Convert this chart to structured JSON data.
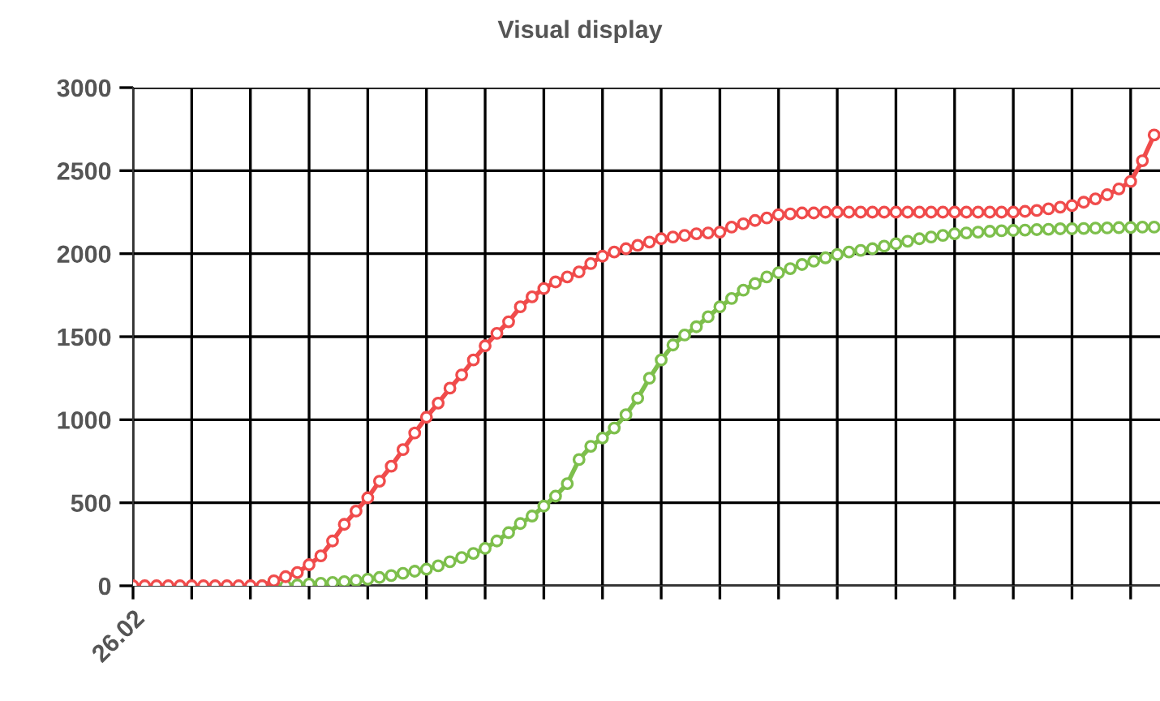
{
  "chart_data": {
    "type": "line",
    "title": "Visual display",
    "categories": [
      "26.02",
      null,
      null,
      null,
      null,
      null,
      null,
      null,
      null,
      null,
      null,
      null,
      null,
      null,
      null,
      null,
      null,
      null,
      null,
      null,
      null,
      null,
      null,
      null,
      null,
      null,
      null,
      null,
      null,
      null,
      null,
      null,
      null,
      null,
      null,
      null,
      null,
      null,
      null,
      null,
      null,
      null,
      null,
      null,
      null,
      null,
      null,
      null,
      null,
      null,
      null,
      null,
      null,
      null,
      null,
      null,
      null,
      null,
      null,
      null,
      null,
      null,
      null,
      null,
      null,
      null,
      null,
      null,
      null,
      null,
      null,
      null,
      null,
      null,
      null,
      null,
      null,
      null,
      null,
      null,
      null,
      null,
      null,
      null,
      null,
      null,
      null,
      null
    ],
    "ylim": [
      0,
      3000
    ],
    "yticks": [
      0,
      500,
      1000,
      1500,
      2000,
      2500,
      3000
    ],
    "grid": true,
    "marker": "circle",
    "line_style": "solid",
    "series": [
      {
        "color": "#f04b4b",
        "values": [
          0,
          0,
          0,
          0,
          0,
          0,
          0,
          0,
          0,
          0,
          0,
          0,
          30,
          55,
          80,
          127,
          180,
          270,
          370,
          450,
          530,
          630,
          720,
          820,
          920,
          1015,
          1100,
          1190,
          1270,
          1360,
          1445,
          1520,
          1590,
          1680,
          1740,
          1790,
          1830,
          1860,
          1890,
          1940,
          1985,
          2010,
          2030,
          2050,
          2070,
          2090,
          2100,
          2110,
          2120,
          2125,
          2130,
          2160,
          2180,
          2200,
          2215,
          2235,
          2240,
          2245,
          2245,
          2250,
          2250,
          2250,
          2250,
          2250,
          2250,
          2250,
          2250,
          2250,
          2250,
          2250,
          2250,
          2250,
          2250,
          2250,
          2250,
          2250,
          2255,
          2260,
          2270,
          2280,
          2290,
          2310,
          2330,
          2355,
          2390,
          2435,
          2560,
          2715
        ]
      },
      {
        "color": "#7dbf4c",
        "values": [
          null,
          null,
          null,
          null,
          null,
          null,
          null,
          null,
          null,
          null,
          null,
          0,
          0,
          0,
          5,
          10,
          15,
          20,
          25,
          32,
          40,
          50,
          62,
          75,
          88,
          100,
          120,
          145,
          170,
          195,
          225,
          270,
          320,
          375,
          420,
          480,
          540,
          615,
          760,
          840,
          890,
          950,
          1030,
          1130,
          1250,
          1360,
          1450,
          1510,
          1560,
          1620,
          1680,
          1730,
          1780,
          1820,
          1860,
          1885,
          1910,
          1935,
          1955,
          1975,
          1995,
          2010,
          2020,
          2030,
          2045,
          2060,
          2075,
          2090,
          2100,
          2110,
          2120,
          2125,
          2130,
          2135,
          2138,
          2140,
          2142,
          2145,
          2147,
          2150,
          2150,
          2152,
          2154,
          2155,
          2157,
          2158,
          2160,
          2160
        ]
      }
    ]
  }
}
